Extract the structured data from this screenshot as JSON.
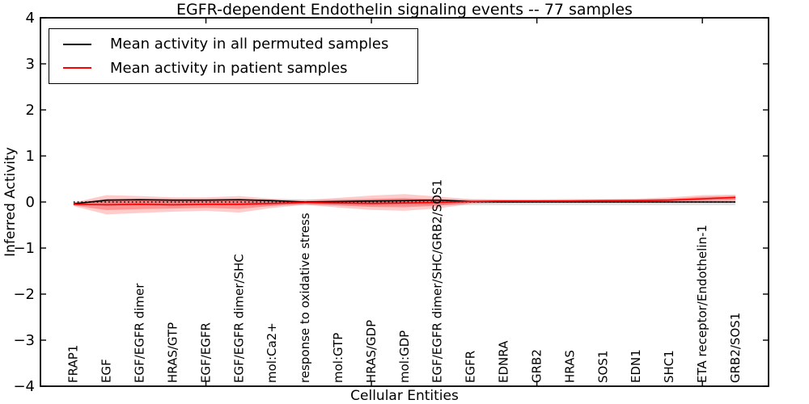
{
  "title": "EGFR-dependent Endothelin signaling events -- 77 samples",
  "legend": {
    "items": [
      {
        "label": "Mean activity in all permuted samples",
        "color": "#000000"
      },
      {
        "label": "Mean activity in patient samples",
        "color": "#ff0000"
      }
    ]
  },
  "axes": {
    "x_label": "Cellular Entities",
    "y_label": "Inferred Activity",
    "ylim": [
      -4,
      4
    ],
    "y_ticks": [
      {
        "value": 4,
        "label": "4"
      },
      {
        "value": 3,
        "label": "3"
      },
      {
        "value": 2,
        "label": "2"
      },
      {
        "value": 1,
        "label": "1"
      },
      {
        "value": 0,
        "label": "0"
      },
      {
        "value": -1,
        "label": "−1"
      },
      {
        "value": -2,
        "label": "−2"
      },
      {
        "value": -3,
        "label": "−3"
      },
      {
        "value": -4,
        "label": "−4"
      }
    ],
    "x_tick_values": [
      5,
      10,
      15,
      20
    ]
  },
  "chart_data": {
    "type": "line",
    "title": "EGFR-dependent Endothelin signaling events -- 77 samples",
    "xlabel": "Cellular Entities",
    "ylabel": "Inferred Activity",
    "ylim": [
      -4,
      4
    ],
    "xlim": [
      0,
      22
    ],
    "grid": false,
    "legend_position": "upper left",
    "categories": [
      "FRAP1",
      "EGF",
      "EGF/EGFR dimer",
      "HRAS/GTP",
      "EGF/EGFR",
      "EGF/EGFR dimer/SHC",
      "mol:Ca2+",
      "response to oxidative stress",
      "mol:GTP",
      "HRAS/GDP",
      "mol:GDP",
      "EGF/EGFR dimer/SHC/GRB2/SOS1",
      "EGFR",
      "EDNRA",
      "GRB2",
      "HRAS",
      "SOS1",
      "EDN1",
      "SHC1",
      "ETA receptor/Endothelin-1",
      "GRB2/SOS1"
    ],
    "zero_line": {
      "y": 0,
      "style": "dotted",
      "color": "#000000"
    },
    "series": [
      {
        "name": "Mean activity in all permuted samples",
        "kind": "line",
        "color": "#000000",
        "style": "solid",
        "values": [
          -0.04,
          0.04,
          0.05,
          0.04,
          0.04,
          0.05,
          0.03,
          0.0,
          0.01,
          0.02,
          0.03,
          0.04,
          0.01,
          0.0,
          0.0,
          0.0,
          0.0,
          0.0,
          0.0,
          0.0,
          0.0
        ]
      },
      {
        "name": "Mean activity in patient samples",
        "kind": "line",
        "color": "#ff0000",
        "style": "solid",
        "values": [
          -0.05,
          -0.06,
          -0.05,
          -0.06,
          -0.05,
          -0.05,
          -0.03,
          -0.01,
          -0.02,
          -0.03,
          -0.02,
          -0.01,
          0.01,
          0.02,
          0.02,
          0.02,
          0.03,
          0.03,
          0.04,
          0.07,
          0.1
        ]
      },
      {
        "name": "Permuted samples spread",
        "kind": "band",
        "color": "#000000",
        "opacity": 0.11,
        "upper": [
          0.0,
          0.07,
          0.07,
          0.07,
          0.07,
          0.07,
          0.06,
          0.06,
          0.06,
          0.06,
          0.06,
          0.06,
          0.06,
          0.06,
          0.06,
          0.06,
          0.06,
          0.06,
          0.06,
          0.07,
          0.07
        ],
        "lower": [
          -0.07,
          -0.08,
          -0.08,
          -0.08,
          -0.08,
          -0.08,
          -0.07,
          -0.07,
          -0.07,
          -0.07,
          -0.07,
          -0.07,
          -0.07,
          -0.07,
          -0.07,
          -0.07,
          -0.07,
          -0.07,
          -0.07,
          -0.07,
          -0.07
        ]
      },
      {
        "name": "Patient samples spread",
        "kind": "band",
        "color": "#ff0000",
        "opacity": 0.2,
        "upper": [
          -0.01,
          0.15,
          0.13,
          0.1,
          0.1,
          0.13,
          0.07,
          0.04,
          0.09,
          0.14,
          0.17,
          0.12,
          0.06,
          0.05,
          0.05,
          0.06,
          0.06,
          0.07,
          0.1,
          0.15,
          0.16
        ],
        "lower": [
          -0.09,
          -0.27,
          -0.24,
          -0.21,
          -0.19,
          -0.23,
          -0.13,
          -0.06,
          -0.12,
          -0.17,
          -0.19,
          -0.14,
          -0.04,
          -0.02,
          -0.01,
          -0.01,
          -0.01,
          0.0,
          0.0,
          0.01,
          0.02
        ]
      }
    ]
  }
}
